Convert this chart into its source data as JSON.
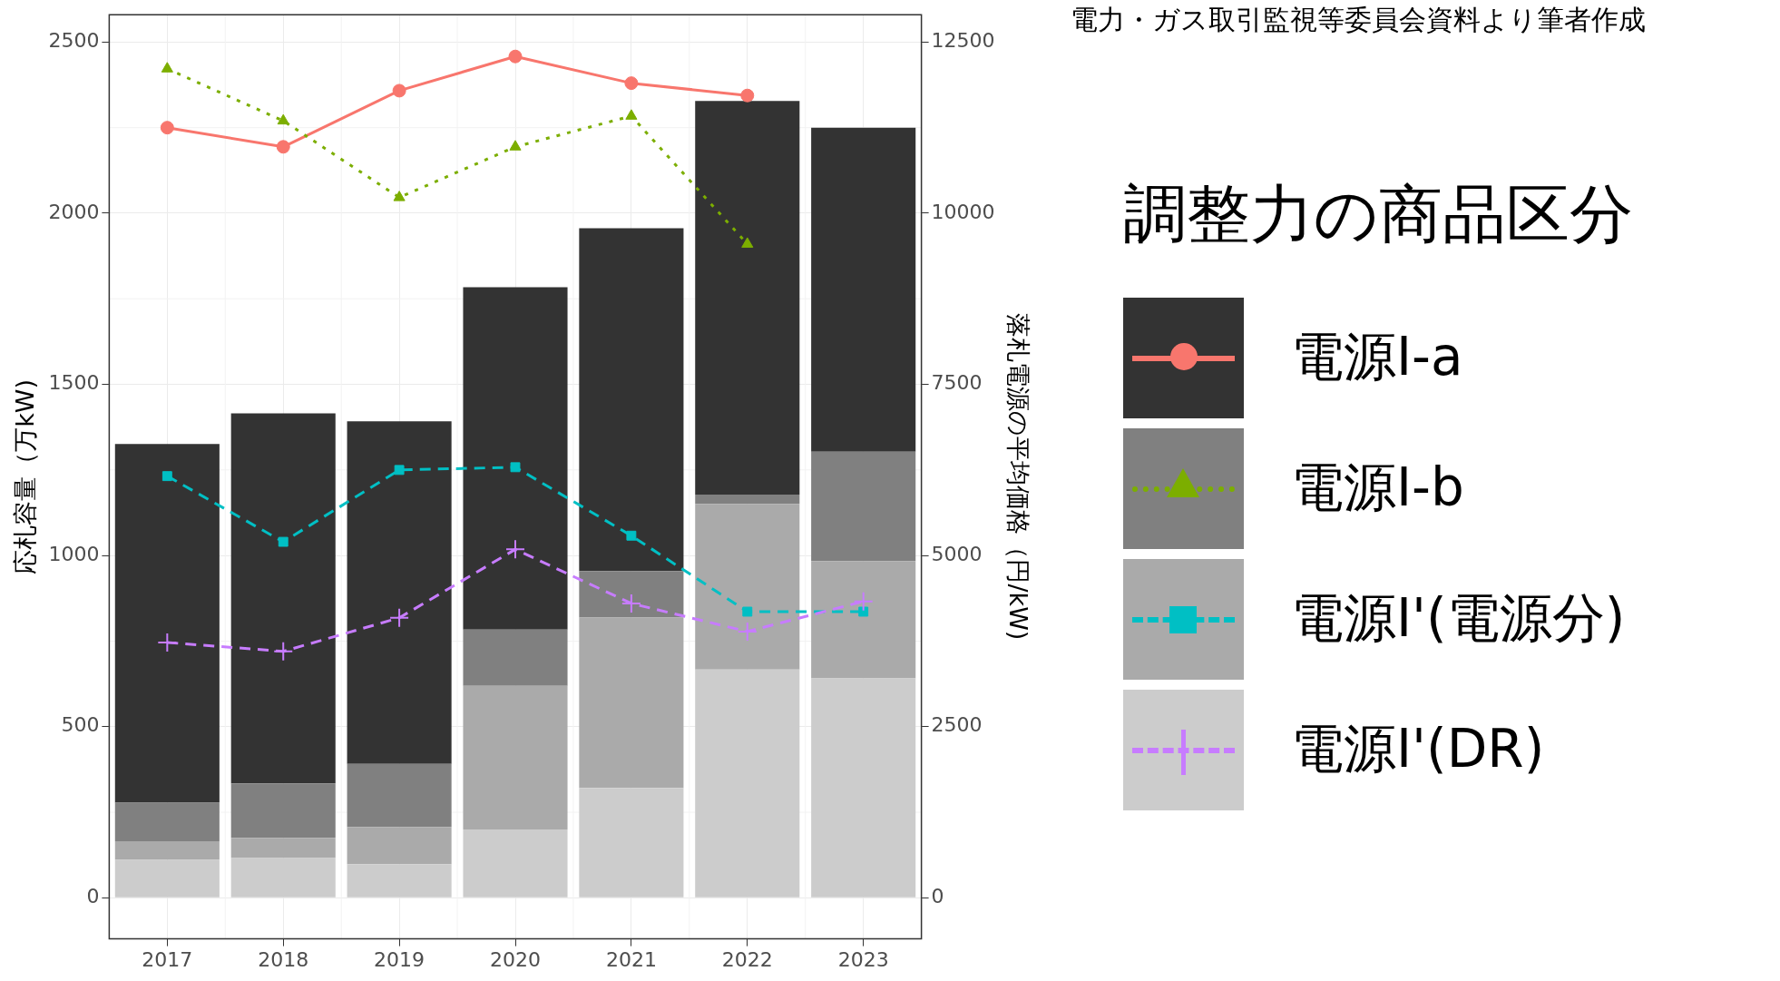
{
  "chart_data": {
    "type": "bar",
    "stacked": true,
    "categories": [
      "2017",
      "2018",
      "2019",
      "2020",
      "2021",
      "2022",
      "2023"
    ],
    "ylabel": "応札容量（万kW)",
    "y2label": "落札電源の平均価格（円/kW)",
    "legend_title": "調整力の商品区分",
    "legend": "right",
    "grid": true,
    "ylim": [
      -120,
      2580
    ],
    "yticks": [
      0,
      500,
      1000,
      1500,
      2000,
      2500
    ],
    "y2lim": [
      -600,
      12900
    ],
    "y2ticks": [
      0,
      2500,
      5000,
      7500,
      10000,
      12500
    ],
    "annotations": [
      "電力・ガス取引監視等委員会資料より筆者作成"
    ],
    "series": [
      {
        "name": "電源I'(DR)",
        "color": "#cccccc",
        "values": [
          111,
          116,
          98,
          200,
          321,
          667,
          641
        ]
      },
      {
        "name": "電源I'(電源分)",
        "color": "#aaaaaa",
        "values": [
          54,
          59,
          109,
          419,
          498,
          484,
          343
        ]
      },
      {
        "name": "電源I-b",
        "color": "#808080",
        "values": [
          113,
          159,
          184,
          165,
          136,
          27,
          319
        ]
      },
      {
        "name": "電源I-a",
        "color": "#333333",
        "values": [
          1048,
          1081,
          1001,
          1000,
          1001,
          1150,
          947
        ]
      },
      {
        "type": "line",
        "axis": "y2",
        "color": "#c77cff",
        "marker": "cross",
        "line_style": "dashed",
        "values": [
          3730,
          3600,
          4090,
          5090,
          4300,
          3890,
          4330
        ]
      },
      {
        "type": "line",
        "axis": "y2",
        "color": "#00bfc4",
        "marker": "square",
        "line_style": "dashed",
        "values": [
          6160,
          5200,
          6250,
          6290,
          5290,
          4180,
          4180
        ]
      },
      {
        "type": "line",
        "axis": "y2",
        "color": "#7cae00",
        "marker": "triangle",
        "line_style": "dotted",
        "values": [
          12110,
          11350,
          10230,
          10970,
          11420,
          9550,
          null
        ]
      },
      {
        "type": "line",
        "axis": "y2",
        "color": "#f8766d",
        "marker": "circle",
        "line_style": "solid",
        "values": [
          11250,
          10970,
          11790,
          12290,
          11900,
          11720,
          null
        ]
      }
    ]
  }
}
